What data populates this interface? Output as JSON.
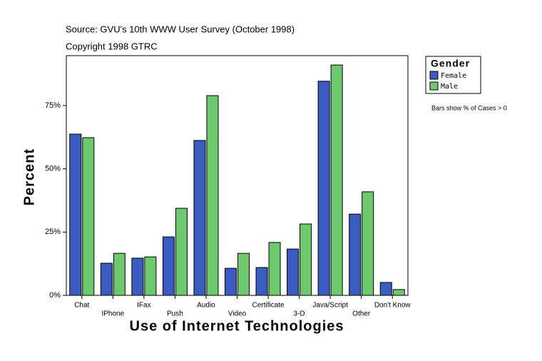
{
  "chart_data": {
    "type": "bar",
    "title": "Source: GVU's 10th WWW User Survey (October 1998)",
    "subtitle": "Copyright 1998 GTRC",
    "x_label": "Use of Internet Technologies",
    "y_label": "Percent",
    "legend_title": "Gender",
    "note": "Bars show % of Cases > 0",
    "categories": [
      "Chat",
      "IPhone",
      "IFax",
      "Push",
      "Audio",
      "Video",
      "Certificate",
      "3-D",
      "Java/Script",
      "Other",
      "Don't Know"
    ],
    "series": [
      {
        "name": "Female",
        "color": "#3a5bbf",
        "values": [
          63.7,
          12.7,
          14.7,
          23.1,
          61.2,
          10.7,
          11.0,
          18.3,
          84.6,
          32.1,
          5.1
        ]
      },
      {
        "name": "Male",
        "color": "#6cc96c",
        "values": [
          62.3,
          16.6,
          15.2,
          34.4,
          78.9,
          16.6,
          20.9,
          28.2,
          91.0,
          40.9,
          2.3
        ]
      }
    ],
    "ylim": [
      0,
      94.7
    ],
    "yticks": [
      {
        "value": 0,
        "label": "0%"
      },
      {
        "value": 25,
        "label": "25%"
      },
      {
        "value": 50,
        "label": "50%"
      },
      {
        "value": 75,
        "label": "75%"
      }
    ],
    "grid": false
  }
}
